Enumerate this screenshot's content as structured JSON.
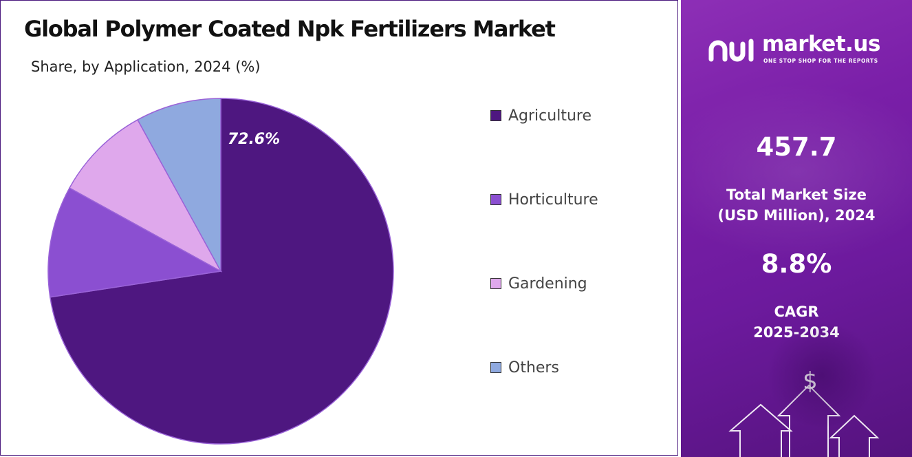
{
  "title": "Global Polymer Coated Npk Fertilizers Market",
  "subtitle": "Share, by Application, 2024 (%)",
  "chart_data": {
    "type": "pie",
    "slices": [
      {
        "label": "Agriculture",
        "value": 72.6,
        "color": "#4e1780",
        "data_label": "72.6%"
      },
      {
        "label": "Horticulture",
        "value": 10.4,
        "color": "#8b4fd1"
      },
      {
        "label": "Gardening",
        "value": 9.0,
        "color": "#dfa8ec"
      },
      {
        "label": "Others",
        "value": 8.0,
        "color": "#8fa9df"
      }
    ],
    "start_angle_deg": 0,
    "direction": "clockwise",
    "legend_position": "right"
  },
  "brand": {
    "name": "market.us",
    "tagline": "ONE STOP SHOP FOR THE REPORTS"
  },
  "stats": {
    "market_size_value": "457.7",
    "market_size_label_line1": "Total Market Size",
    "market_size_label_line2": "(USD Million), 2024",
    "cagr_value": "8.8%",
    "cagr_label_line1": "CAGR",
    "cagr_label_line2": "2025-2034"
  },
  "decoration": {
    "currency_symbol": "$"
  }
}
